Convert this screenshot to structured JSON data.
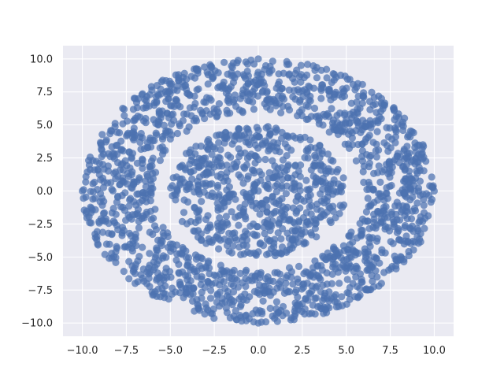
{
  "chart_data": {
    "type": "scatter",
    "title": "",
    "xlabel": "",
    "ylabel": "",
    "xlim": [
      -11.1,
      11.1
    ],
    "ylim": [
      -11.0,
      11.0
    ],
    "xticks": [
      -10.0,
      -7.5,
      -5.0,
      -2.5,
      0.0,
      2.5,
      5.0,
      7.5,
      10.0
    ],
    "xtick_labels": [
      "−10.0",
      "−7.5",
      "−5.0",
      "−2.5",
      "0.0",
      "2.5",
      "5.0",
      "7.5",
      "10.0"
    ],
    "yticks": [
      -10.0,
      -7.5,
      -5.0,
      -2.5,
      0.0,
      2.5,
      5.0,
      7.5,
      10.0
    ],
    "ytick_labels": [
      "−10.0",
      "−7.5",
      "−5.0",
      "−2.5",
      "0.0",
      "2.5",
      "5.0",
      "7.5",
      "10.0"
    ],
    "grid": true,
    "legend": "none",
    "colors": {
      "background": "#eaeaf2",
      "point": "#4c72b0",
      "grid": "#ffffff",
      "text": "#262626"
    },
    "series": [
      {
        "ring": "inner",
        "r_min": 0.0,
        "r_max": 5.0,
        "points": [
          [
            0.0,
            0.0
          ],
          [
            4.6,
            0.0
          ],
          [
            -4.6,
            0.0
          ],
          [
            0.0,
            4.6
          ],
          [
            0.0,
            -4.6
          ],
          [
            3.25,
            3.25
          ],
          [
            -3.25,
            -3.25
          ]
        ]
      },
      {
        "ring": "outer",
        "r_min": 6.0,
        "r_max": 10.0,
        "points": [
          [
            10.0,
            0.0
          ],
          [
            -10.0,
            0.0
          ],
          [
            0.0,
            10.0
          ],
          [
            0.0,
            -10.0
          ],
          [
            7.0,
            7.0
          ],
          [
            -7.0,
            -7.0
          ],
          [
            7.0,
            -7.0
          ],
          [
            -7.0,
            7.0
          ]
        ]
      }
    ]
  }
}
